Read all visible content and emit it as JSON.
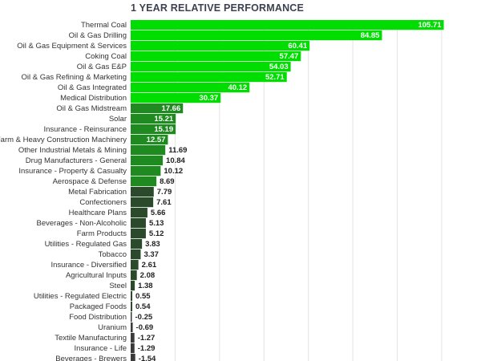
{
  "chart_data": {
    "type": "bar",
    "orientation": "horizontal",
    "title": "1 YEAR RELATIVE PERFORMANCE",
    "xlabel": "",
    "ylabel": "",
    "grid": true,
    "categories": [
      "Thermal Coal",
      "Oil & Gas Drilling",
      "Oil & Gas Equipment & Services",
      "Coking Coal",
      "Oil & Gas E&P",
      "Oil & Gas Refining & Marketing",
      "Oil & Gas Integrated",
      "Medical Distribution",
      "Oil & Gas Midstream",
      "Solar",
      "Insurance - Reinsurance",
      "Farm & Heavy Construction Machinery",
      "Other Industrial Metals & Mining",
      "Drug Manufacturers - General",
      "Insurance - Property & Casualty",
      "Aerospace & Defense",
      "Metal Fabrication",
      "Confectioners",
      "Healthcare Plans",
      "Beverages - Non-Alcoholic",
      "Farm Products",
      "Utilities - Regulated Gas",
      "Tobacco",
      "Insurance - Diversified",
      "Agricultural Inputs",
      "Steel",
      "Utilities - Regulated Electric",
      "Packaged Foods",
      "Food Distribution",
      "Uranium",
      "Textile Manufacturing",
      "Insurance - Life",
      "Beverages - Brewers"
    ],
    "values": [
      105.71,
      84.85,
      60.41,
      57.47,
      54.03,
      52.71,
      40.12,
      30.37,
      17.66,
      15.21,
      15.19,
      12.57,
      11.69,
      10.84,
      10.12,
      8.69,
      7.79,
      7.61,
      5.66,
      5.13,
      5.12,
      3.83,
      3.37,
      2.61,
      2.08,
      1.38,
      0.55,
      0.54,
      -0.25,
      -0.69,
      -1.27,
      -1.29,
      -1.54
    ],
    "value_labels": [
      "105.71",
      "84.85",
      "60.41",
      "57.47",
      "54.03",
      "52.71",
      "40.12",
      "30.37",
      "17.66",
      "15.21",
      "15.19",
      "12.57",
      "11.69",
      "10.84",
      "10.12",
      "8.69",
      "7.79",
      "7.61",
      "5.66",
      "5.13",
      "5.12",
      "3.83",
      "3.37",
      "2.61",
      "2.08",
      "1.38",
      "0.55",
      "0.54",
      "-0.25",
      "-0.69",
      "-1.27",
      "-1.29",
      "-1.54"
    ],
    "xlim": [
      0,
      108
    ],
    "colors": {
      "bright": "#00dd00",
      "mid": "#1f8a1f",
      "dark": "#2b4a2b",
      "negative": "#3a3a3a",
      "label_inside": "#ffffff",
      "label_outside": "#222222",
      "title": "#3d4150"
    }
  }
}
